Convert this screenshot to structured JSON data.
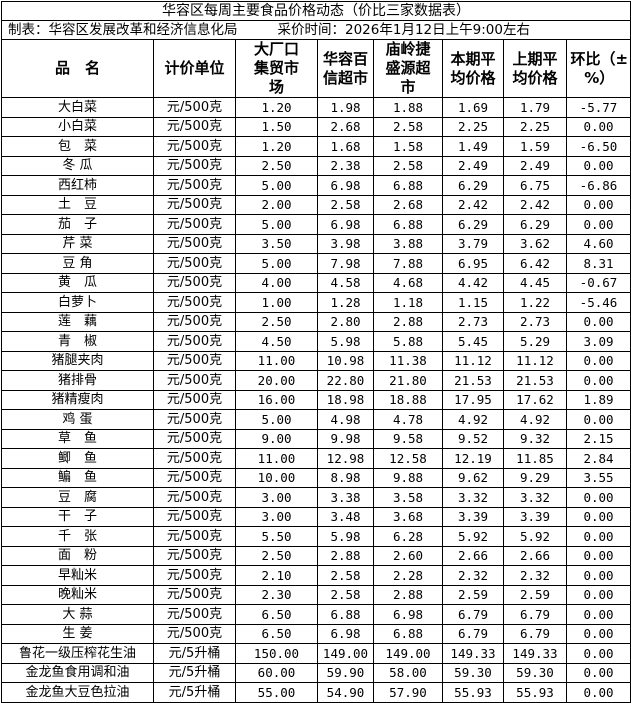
{
  "title": "华容区每周主要食品价格动态（价比三家数据表）",
  "meta": {
    "maker": "制表：华容区发展改革和经济信息化局",
    "time": "采价时间：2026年1月12日上午9:00左右"
  },
  "headers": [
    "品　名",
    "计价单位",
    "大厂口集贸市场",
    "华容百信超市",
    "庙岭捷盛源超市",
    "本期平均价格",
    "上期平均价格",
    "环比（±%）"
  ],
  "rows": [
    [
      "大白菜",
      "元/500克",
      "1.20",
      "1.98",
      "1.88",
      "1.69",
      "1.79",
      "-5.77"
    ],
    [
      "小白菜",
      "元/500克",
      "1.50",
      "2.68",
      "2.58",
      "2.25",
      "2.25",
      "0.00"
    ],
    [
      "包　菜",
      "元/500克",
      "1.20",
      "1.68",
      "1.58",
      "1.49",
      "1.59",
      "-6.50"
    ],
    [
      "冬 瓜",
      "元/500克",
      "2.50",
      "2.38",
      "2.58",
      "2.49",
      "2.49",
      "0.00"
    ],
    [
      "西红柿",
      "元/500克",
      "5.00",
      "6.98",
      "6.88",
      "6.29",
      "6.75",
      "-6.86"
    ],
    [
      "土　豆",
      "元/500克",
      "2.00",
      "2.58",
      "2.68",
      "2.42",
      "2.42",
      "0.00"
    ],
    [
      "茄　子",
      "元/500克",
      "5.00",
      "6.98",
      "6.88",
      "6.29",
      "6.29",
      "0.00"
    ],
    [
      "芹 菜",
      "元/500克",
      "3.50",
      "3.98",
      "3.88",
      "3.79",
      "3.62",
      "4.60"
    ],
    [
      "豆 角",
      "元/500克",
      "5.00",
      "7.98",
      "7.88",
      "6.95",
      "6.42",
      "8.31"
    ],
    [
      "黄　瓜",
      "元/500克",
      "4.00",
      "4.58",
      "4.68",
      "4.42",
      "4.45",
      "-0.67"
    ],
    [
      "白萝卜",
      "元/500克",
      "1.00",
      "1.28",
      "1.18",
      "1.15",
      "1.22",
      "-5.46"
    ],
    [
      "莲　藕",
      "元/500克",
      "2.50",
      "2.80",
      "2.88",
      "2.73",
      "2.73",
      "0.00"
    ],
    [
      "青　椒",
      "元/500克",
      "4.50",
      "5.98",
      "5.88",
      "5.45",
      "5.29",
      "3.09"
    ],
    [
      "猪腿夹肉",
      "元/500克",
      "11.00",
      "10.98",
      "11.38",
      "11.12",
      "11.12",
      "0.00"
    ],
    [
      "猪排骨",
      "元/500克",
      "20.00",
      "22.80",
      "21.80",
      "21.53",
      "21.53",
      "0.00"
    ],
    [
      "猪精瘦肉",
      "元/500克",
      "16.00",
      "18.98",
      "18.88",
      "17.95",
      "17.62",
      "1.89"
    ],
    [
      "鸡 蛋",
      "元/500克",
      "5.00",
      "4.98",
      "4.78",
      "4.92",
      "4.92",
      "0.00"
    ],
    [
      "草　鱼",
      "元/500克",
      "9.00",
      "9.98",
      "9.58",
      "9.52",
      "9.32",
      "2.15"
    ],
    [
      "鲫　鱼",
      "元/500克",
      "11.00",
      "12.98",
      "12.58",
      "12.19",
      "11.85",
      "2.84"
    ],
    [
      "鳊　鱼",
      "元/500克",
      "10.00",
      "8.98",
      "9.88",
      "9.62",
      "9.29",
      "3.55"
    ],
    [
      "豆　腐",
      "元/500克",
      "3.00",
      "3.38",
      "3.58",
      "3.32",
      "3.32",
      "0.00"
    ],
    [
      "干　子",
      "元/500克",
      "3.00",
      "3.48",
      "3.68",
      "3.39",
      "3.39",
      "0.00"
    ],
    [
      "千　张",
      "元/500克",
      "5.50",
      "5.98",
      "6.28",
      "5.92",
      "5.92",
      "0.00"
    ],
    [
      "面　粉",
      "元/500克",
      "2.50",
      "2.88",
      "2.60",
      "2.66",
      "2.66",
      "0.00"
    ],
    [
      "早籼米",
      "元/500克",
      "2.10",
      "2.58",
      "2.28",
      "2.32",
      "2.32",
      "0.00"
    ],
    [
      "晚籼米",
      "元/500克",
      "2.30",
      "2.58",
      "2.88",
      "2.59",
      "2.59",
      "0.00"
    ],
    [
      "大 蒜",
      "元/500克",
      "6.50",
      "6.88",
      "6.98",
      "6.79",
      "6.79",
      "0.00"
    ],
    [
      "生 姜",
      "元/500克",
      "6.50",
      "6.98",
      "6.88",
      "6.79",
      "6.79",
      "0.00"
    ],
    [
      "鲁花一级压榨花生油",
      "元/5升桶",
      "150.00",
      "149.00",
      "149.00",
      "149.33",
      "149.33",
      "0.00"
    ],
    [
      "金龙鱼食用调和油",
      "元/5升桶",
      "60.00",
      "59.90",
      "58.00",
      "59.30",
      "59.30",
      "0.00"
    ],
    [
      "金龙鱼大豆色拉油",
      "元/5升桶",
      "55.00",
      "54.90",
      "57.90",
      "55.93",
      "55.93",
      "0.00"
    ]
  ]
}
